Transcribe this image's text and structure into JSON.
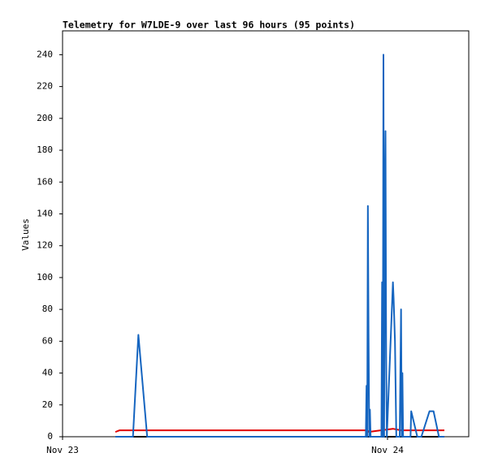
{
  "chart_data": {
    "type": "line",
    "title": "Telemetry for W7LDE-9 over last 96 hours (95 points)",
    "y_label": "Values",
    "xlim": [
      0,
      30
    ],
    "xticks": [
      {
        "value": 0,
        "label": "Nov 23"
      },
      {
        "value": 24,
        "label": "Nov 24"
      }
    ],
    "ylim": [
      0,
      255
    ],
    "yticks": [
      0,
      20,
      40,
      60,
      80,
      100,
      120,
      140,
      160,
      180,
      200,
      220,
      240
    ],
    "grid": false,
    "series": [
      {
        "color": "#000000",
        "x": [
          3.9,
          28.2
        ],
        "values": [
          0,
          0
        ]
      },
      {
        "color": "#e00000",
        "x": [
          3.9,
          4.2,
          22.5,
          22.6,
          23.5,
          24.4,
          25.0,
          28.2
        ],
        "values": [
          3,
          4,
          4,
          3,
          4,
          5,
          4,
          4
        ]
      },
      {
        "color": "#1565c0",
        "x": [
          3.9,
          5.2,
          5.6,
          6.25,
          22.4,
          22.45,
          22.5,
          22.55,
          22.6,
          22.65,
          22.7,
          22.75,
          23.55,
          23.6,
          23.65,
          23.7,
          23.75,
          23.8,
          23.85,
          23.9,
          23.95,
          24.4,
          24.45,
          24.55,
          24.65,
          24.9,
          25.0,
          25.05,
          25.1,
          25.15,
          25.7,
          25.75,
          26.2,
          26.5,
          27.1,
          27.4,
          27.8,
          28.2
        ],
        "values": [
          0,
          0,
          64,
          0,
          0,
          32,
          0,
          145,
          64,
          0,
          17,
          0,
          0,
          97,
          0,
          240,
          0,
          137,
          192,
          50,
          0,
          97,
          87,
          60,
          0,
          0,
          80,
          0,
          40,
          0,
          0,
          16,
          0,
          0,
          16,
          16,
          0,
          0
        ]
      }
    ]
  }
}
